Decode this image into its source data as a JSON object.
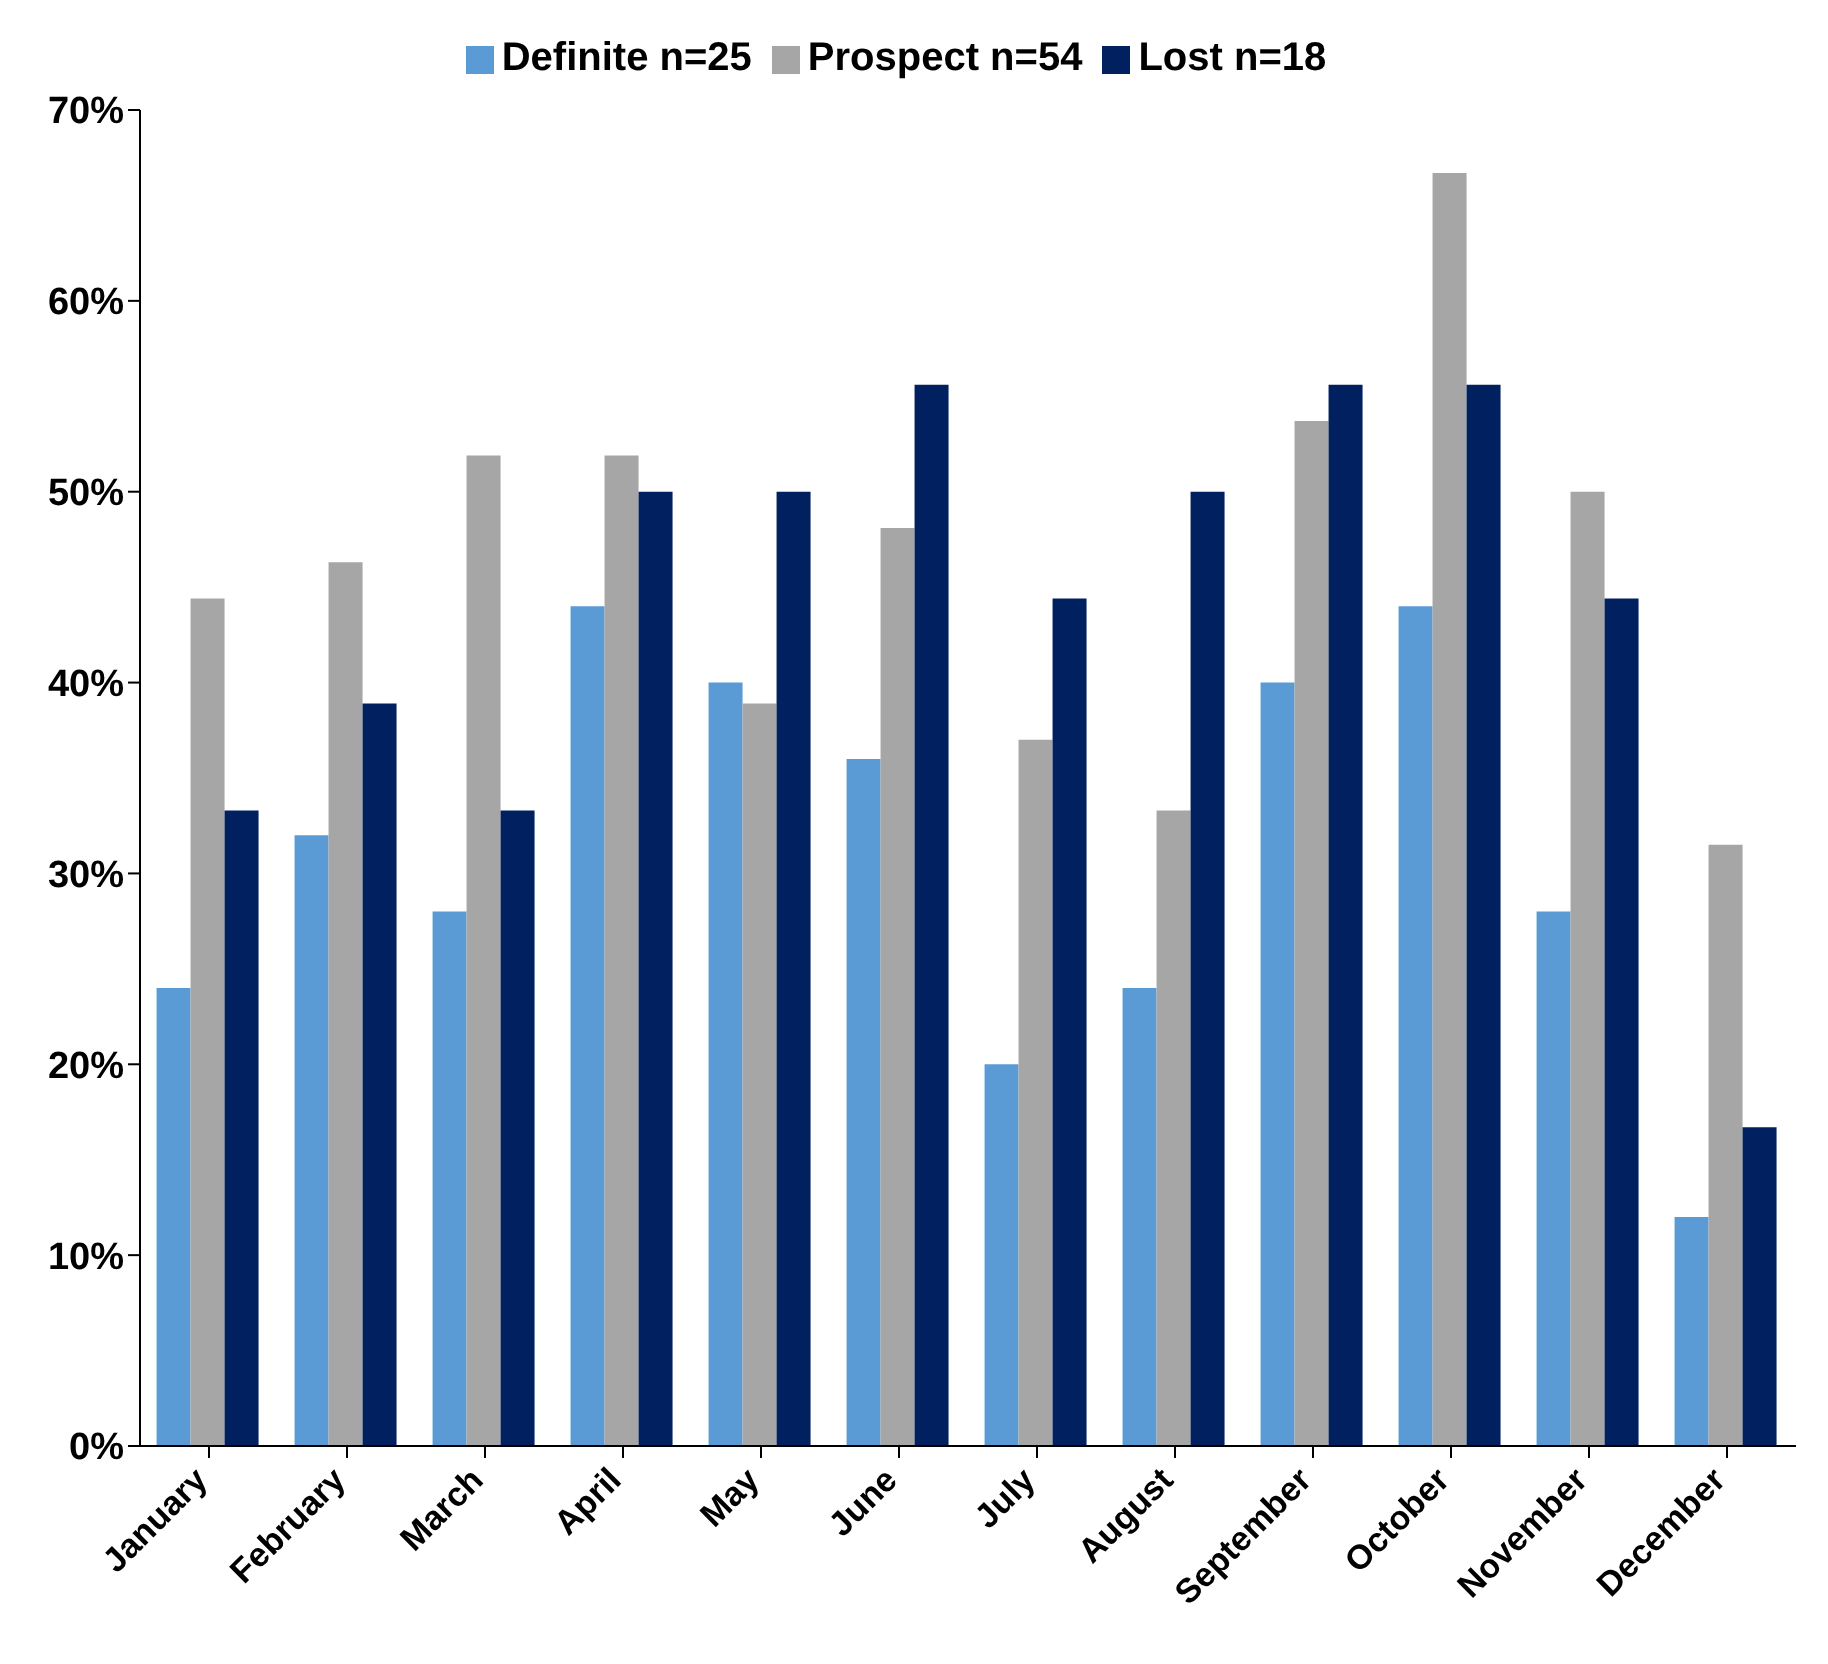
{
  "chart_data": {
    "type": "bar",
    "categories": [
      "January",
      "February",
      "March",
      "April",
      "May",
      "June",
      "July",
      "August",
      "September",
      "October",
      "November",
      "December"
    ],
    "series": [
      {
        "name": "Definite n=25",
        "color": "#5b9bd5",
        "values": [
          24,
          32,
          28,
          44,
          40,
          36,
          20,
          24,
          40,
          44,
          28,
          12
        ]
      },
      {
        "name": "Prospect n=54",
        "color": "#a6a6a6",
        "values": [
          44.4,
          46.3,
          51.9,
          51.9,
          38.9,
          48.1,
          37,
          33.3,
          53.7,
          66.7,
          50,
          31.5
        ]
      },
      {
        "name": "Lost n=18",
        "color": "#002060",
        "values": [
          33.3,
          38.9,
          33.3,
          50,
          50,
          55.6,
          44.4,
          50,
          55.6,
          55.6,
          44.4,
          16.7
        ]
      }
    ],
    "ylim": [
      0,
      70
    ],
    "yticks": [
      {
        "value": 0,
        "label": "0%"
      },
      {
        "value": 10,
        "label": "10%"
      },
      {
        "value": 20,
        "label": "20%"
      },
      {
        "value": 30,
        "label": "30%"
      },
      {
        "value": 40,
        "label": "40%"
      },
      {
        "value": 50,
        "label": "50%"
      },
      {
        "value": 60,
        "label": "60%"
      },
      {
        "value": 70,
        "label": "70%"
      }
    ],
    "grid": false,
    "legend": "top"
  }
}
